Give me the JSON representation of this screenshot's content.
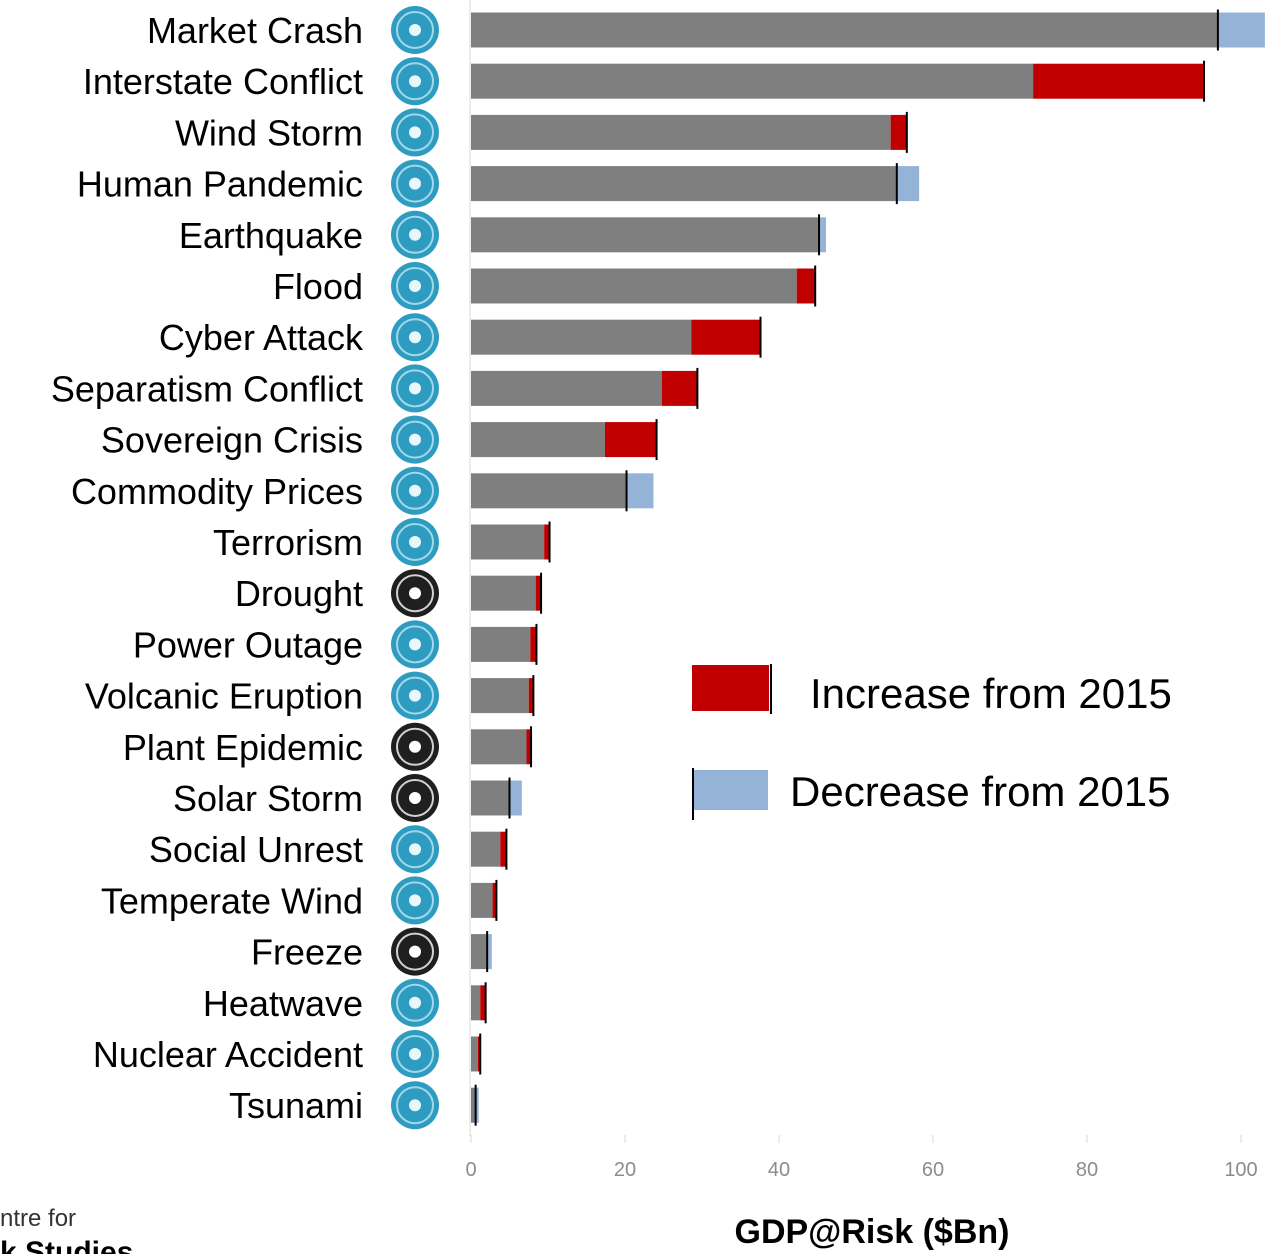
{
  "chart_data": {
    "type": "bar",
    "orientation": "horizontal",
    "stacked": true,
    "xlabel": "GDP@Risk ($Bn)",
    "xlim": [
      0,
      100
    ],
    "xticks": [
      "0",
      "20",
      "40",
      "60",
      "80",
      "100"
    ],
    "grid": false,
    "legend_position": "right-middle",
    "categories": [
      "Market Crash",
      "Interstate Conflict",
      "Wind Storm",
      "Human Pandemic",
      "Earthquake",
      "Flood",
      "Cyber Attack",
      "Separatism Conflict",
      "Sovereign Crisis",
      "Commodity Prices",
      "Terrorism",
      "Drought",
      "Power Outage",
      "Volcanic Eruption",
      "Plant Epidemic",
      "Solar Storm",
      "Social Unrest",
      "Temperate Wind",
      "Freeze",
      "Heatwave",
      "Nuclear Accident",
      "Tsunami"
    ],
    "series": [
      {
        "name": "",
        "color": "#7f7f7f",
        "values": [
          97,
          73,
          54.5,
          55.3,
          45.2,
          42.3,
          28.6,
          24.8,
          17.4,
          20.2,
          9.5,
          8.4,
          7.7,
          7.5,
          7.2,
          5.0,
          3.8,
          2.8,
          2.1,
          1.2,
          0.9,
          0.6
        ]
      },
      {
        "name": "Increase from 2015",
        "color": "#c00000",
        "values": [
          0,
          22.2,
          2.1,
          0,
          0,
          2.4,
          9.0,
          4.6,
          6.7,
          0,
          0.7,
          0.7,
          0.8,
          0.6,
          0.6,
          0,
          0.8,
          0.5,
          0,
          0.7,
          0.3,
          0
        ]
      },
      {
        "name": "Decrease from 2015",
        "color": "#95b3d7",
        "values": [
          6.1,
          0,
          0,
          2.9,
          0.9,
          0,
          0,
          0,
          0,
          3.5,
          0,
          0,
          0,
          0,
          0,
          1.6,
          0,
          0,
          0.6,
          0,
          0,
          0.4
        ]
      }
    ]
  },
  "icons": [
    "market-crash-icon",
    "interstate-conflict-icon",
    "wind-storm-icon",
    "human-pandemic-icon",
    "earthquake-icon",
    "flood-icon",
    "cyber-attack-icon",
    "separatism-conflict-icon",
    "sovereign-crisis-icon",
    "commodity-prices-icon",
    "terrorism-icon",
    "drought-icon",
    "power-outage-icon",
    "volcanic-eruption-icon",
    "plant-epidemic-icon",
    "solar-storm-icon",
    "social-unrest-icon",
    "temperate-wind-icon",
    "freeze-icon",
    "heatwave-icon",
    "nuclear-accident-icon",
    "tsunami-icon"
  ],
  "legend": {
    "increase_label": "Increase from 2015",
    "decrease_label": "Decrease from 2015"
  },
  "logo": {
    "line1": "ntre for",
    "line2": "k Studies"
  }
}
